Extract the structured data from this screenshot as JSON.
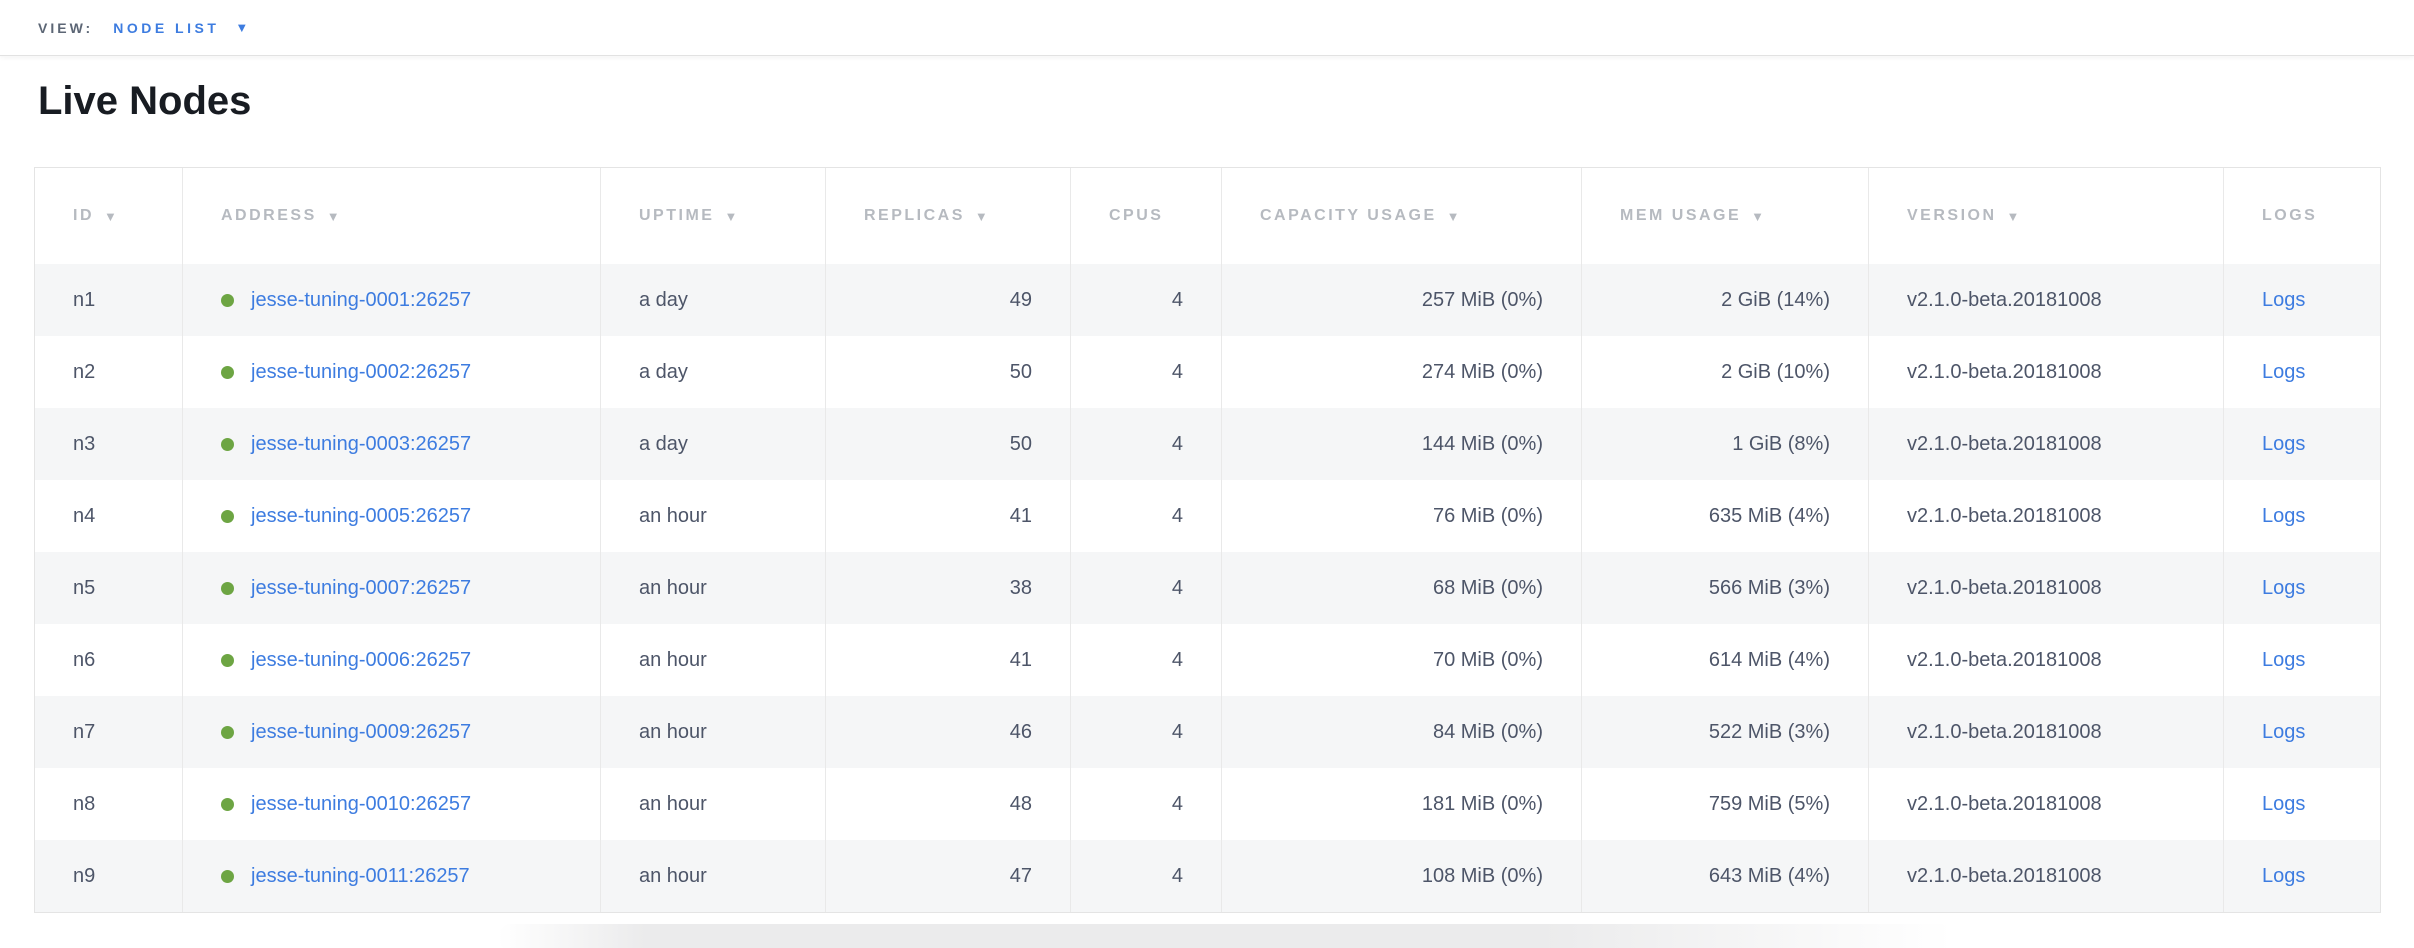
{
  "view_bar": {
    "label": "VIEW:",
    "selected": "NODE LIST"
  },
  "page": {
    "title": "Live Nodes"
  },
  "icons": {
    "sort_desc": "▼",
    "dropdown_caret": "▼"
  },
  "colors": {
    "link_blue": "#3d7ce0",
    "live_green": "#6da543",
    "header_gray": "#b6bac0",
    "data_text": "#4d5568",
    "stripe": "#f5f6f7"
  },
  "table": {
    "columns": [
      {
        "key": "id",
        "label": "ID",
        "sortable": true,
        "align": "left"
      },
      {
        "key": "address",
        "label": "ADDRESS",
        "sortable": true,
        "align": "left"
      },
      {
        "key": "uptime",
        "label": "UPTIME",
        "sortable": true,
        "align": "left"
      },
      {
        "key": "replicas",
        "label": "REPLICAS",
        "sortable": true,
        "align": "right"
      },
      {
        "key": "cpus",
        "label": "CPUS",
        "sortable": false,
        "align": "right"
      },
      {
        "key": "capacity",
        "label": "CAPACITY USAGE",
        "sortable": true,
        "align": "right"
      },
      {
        "key": "mem",
        "label": "MEM USAGE",
        "sortable": true,
        "align": "right"
      },
      {
        "key": "version",
        "label": "VERSION",
        "sortable": true,
        "align": "left"
      },
      {
        "key": "logs",
        "label": "LOGS",
        "sortable": false,
        "align": "left"
      }
    ],
    "rows": [
      {
        "id": "n1",
        "status": "live",
        "address": "jesse-tuning-0001:26257",
        "uptime": "a day",
        "replicas": "49",
        "cpus": "4",
        "capacity": "257 MiB (0%)",
        "mem": "2 GiB (14%)",
        "version": "v2.1.0-beta.20181008",
        "logs": "Logs"
      },
      {
        "id": "n2",
        "status": "live",
        "address": "jesse-tuning-0002:26257",
        "uptime": "a day",
        "replicas": "50",
        "cpus": "4",
        "capacity": "274 MiB (0%)",
        "mem": "2 GiB (10%)",
        "version": "v2.1.0-beta.20181008",
        "logs": "Logs"
      },
      {
        "id": "n3",
        "status": "live",
        "address": "jesse-tuning-0003:26257",
        "uptime": "a day",
        "replicas": "50",
        "cpus": "4",
        "capacity": "144 MiB (0%)",
        "mem": "1 GiB (8%)",
        "version": "v2.1.0-beta.20181008",
        "logs": "Logs"
      },
      {
        "id": "n4",
        "status": "live",
        "address": "jesse-tuning-0005:26257",
        "uptime": "an hour",
        "replicas": "41",
        "cpus": "4",
        "capacity": "76 MiB (0%)",
        "mem": "635 MiB (4%)",
        "version": "v2.1.0-beta.20181008",
        "logs": "Logs"
      },
      {
        "id": "n5",
        "status": "live",
        "address": "jesse-tuning-0007:26257",
        "uptime": "an hour",
        "replicas": "38",
        "cpus": "4",
        "capacity": "68 MiB (0%)",
        "mem": "566 MiB (3%)",
        "version": "v2.1.0-beta.20181008",
        "logs": "Logs"
      },
      {
        "id": "n6",
        "status": "live",
        "address": "jesse-tuning-0006:26257",
        "uptime": "an hour",
        "replicas": "41",
        "cpus": "4",
        "capacity": "70 MiB (0%)",
        "mem": "614 MiB (4%)",
        "version": "v2.1.0-beta.20181008",
        "logs": "Logs"
      },
      {
        "id": "n7",
        "status": "live",
        "address": "jesse-tuning-0009:26257",
        "uptime": "an hour",
        "replicas": "46",
        "cpus": "4",
        "capacity": "84 MiB (0%)",
        "mem": "522 MiB (3%)",
        "version": "v2.1.0-beta.20181008",
        "logs": "Logs"
      },
      {
        "id": "n8",
        "status": "live",
        "address": "jesse-tuning-0010:26257",
        "uptime": "an hour",
        "replicas": "48",
        "cpus": "4",
        "capacity": "181 MiB (0%)",
        "mem": "759 MiB (5%)",
        "version": "v2.1.0-beta.20181008",
        "logs": "Logs"
      },
      {
        "id": "n9",
        "status": "live",
        "address": "jesse-tuning-0011:26257",
        "uptime": "an hour",
        "replicas": "47",
        "cpus": "4",
        "capacity": "108 MiB (0%)",
        "mem": "643 MiB (4%)",
        "version": "v2.1.0-beta.20181008",
        "logs": "Logs"
      }
    ]
  }
}
